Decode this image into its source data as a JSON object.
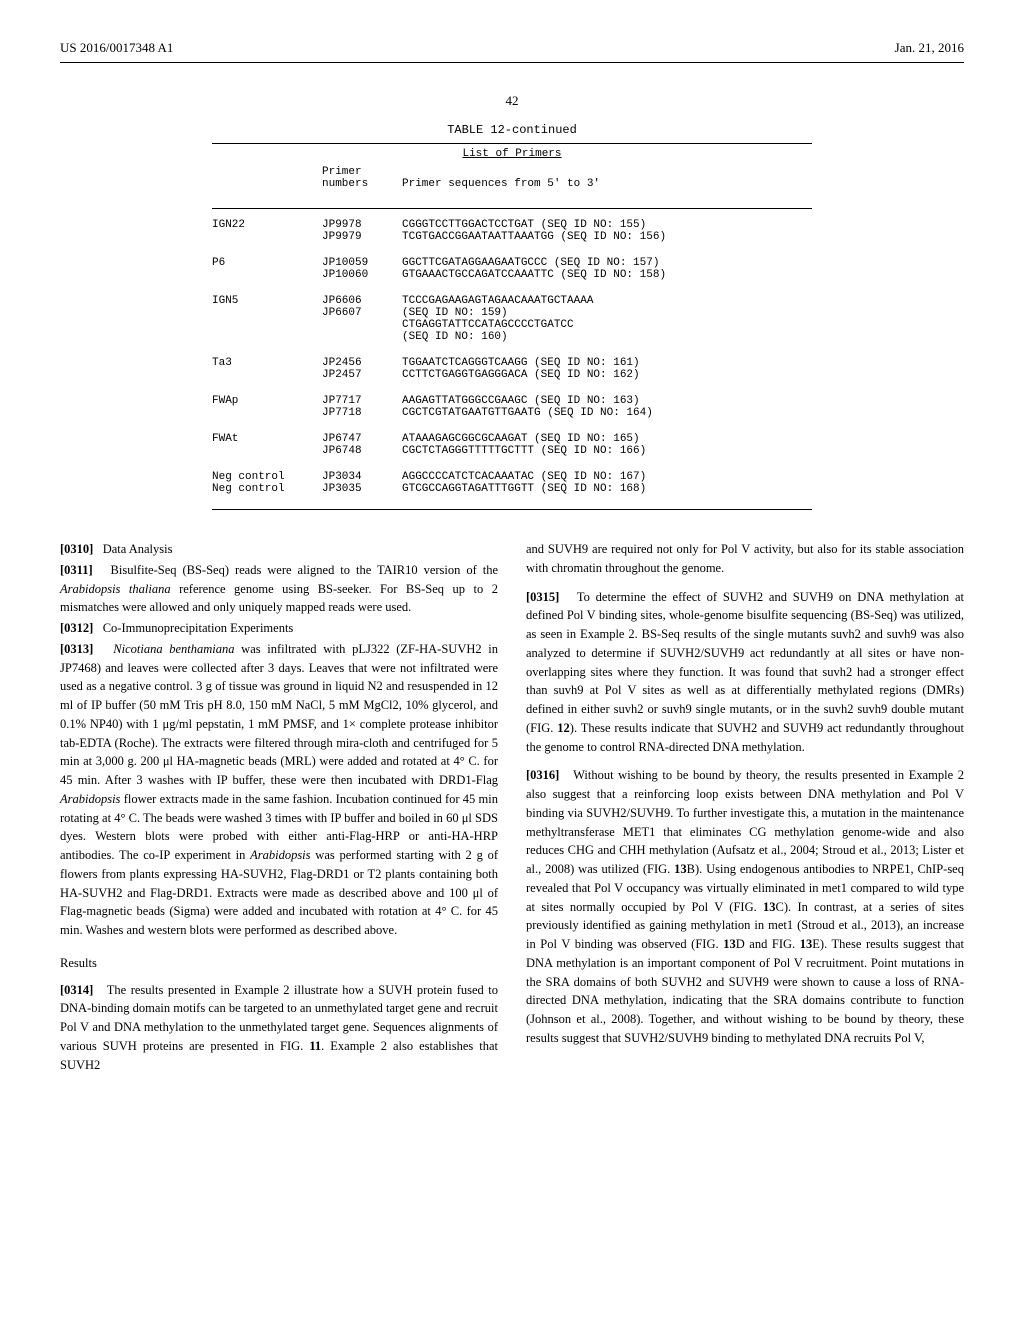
{
  "header": {
    "left": "US 2016/0017348 A1",
    "right": "Jan. 21, 2016"
  },
  "page_number": "42",
  "table": {
    "title": "TABLE 12-continued",
    "subtitle": "List of Primers",
    "header_col2_line1": "Primer",
    "header_col2_line2": "numbers",
    "header_col3": "Primer sequences from 5' to 3'",
    "rows": [
      {
        "name": "IGN22",
        "lines": [
          {
            "num": "JP9978",
            "seq": "CGGGTCCTTGGACTCCTGAT (SEQ ID NO: 155)"
          },
          {
            "num": "JP9979",
            "seq": "TCGTGACCGGAATAATTAAATGG (SEQ ID NO: 156)"
          }
        ]
      },
      {
        "name": "P6",
        "lines": [
          {
            "num": "JP10059",
            "seq": "GGCTTCGATAGGAAGAATGCCC (SEQ ID NO: 157)"
          },
          {
            "num": "JP10060",
            "seq": "GTGAAACTGCCAGATCCAAATTC (SEQ ID NO: 158)"
          }
        ]
      },
      {
        "name": "IGN5",
        "lines": [
          {
            "num": "JP6606",
            "seq": "TCCCGAGAAGAGTAGAACAAATGCTAAAA"
          },
          {
            "num": "",
            "seq": "(SEQ ID NO: 159)"
          },
          {
            "num": "JP6607",
            "seq": "CTGAGGTATTCCATAGCCCCTGATCC"
          },
          {
            "num": "",
            "seq": "(SEQ ID NO: 160)"
          }
        ]
      },
      {
        "name": "Ta3",
        "lines": [
          {
            "num": "JP2456",
            "seq": "TGGAATCTCAGGGTCAAGG (SEQ ID NO: 161)"
          },
          {
            "num": "JP2457",
            "seq": "CCTTCTGAGGTGAGGGACA (SEQ ID NO: 162)"
          }
        ]
      },
      {
        "name": "FWAp",
        "lines": [
          {
            "num": "JP7717",
            "seq": "AAGAGTTATGGGCCGAAGC (SEQ ID NO: 163)"
          },
          {
            "num": "JP7718",
            "seq": "CGCTCGTATGAATGTTGAATG (SEQ ID NO: 164)"
          }
        ]
      },
      {
        "name": "FWAt",
        "lines": [
          {
            "num": "JP6747",
            "seq": "ATAAAGAGCGGCGCAAGAT (SEQ ID NO: 165)"
          },
          {
            "num": "JP6748",
            "seq": "CGCTCTAGGGTTTTTGCTTT (SEQ ID NO: 166)"
          }
        ]
      },
      {
        "name": "Neg control\nNeg control",
        "lines": [
          {
            "num": "JP3034",
            "seq": "AGGCCCCATCTCACAAATAC (SEQ ID NO: 167)"
          },
          {
            "num": "JP3035",
            "seq": "GTCGCCAGGTAGATTTGGTT (SEQ ID NO: 168)"
          }
        ]
      }
    ]
  },
  "paragraphs": {
    "p0310": {
      "num": "[0310]",
      "text": "Data Analysis"
    },
    "p0311": {
      "num": "[0311]",
      "text_pre": "Bisulfite-Seq (BS-Seq) reads were aligned to the TAIR10 version of the ",
      "italic": "Arabidopsis thaliana",
      "text_post": " reference genome using BS-seeker. For BS-Seq up to 2 mismatches were allowed and only uniquely mapped reads were used."
    },
    "p0312": {
      "num": "[0312]",
      "text": "Co-Immunoprecipitation Experiments"
    },
    "p0313": {
      "num": "[0313]",
      "italic1": "Nicotiana benthamiana",
      "text1": " was infiltrated with pLJ322 (ZF-HA-SUVH2 in JP7468) and leaves were collected after 3 days. Leaves that were not infiltrated were used as a negative control. 3 g of tissue was ground in liquid N2 and resuspended in 12 ml of IP buffer (50 mM Tris pH 8.0, 150 mM NaCl, 5 mM MgCl2, 10% glycerol, and 0.1% NP40) with 1 μg/ml pepstatin, 1 mM PMSF, and 1× complete protease inhibitor tab-EDTA (Roche). The extracts were filtered through mira-cloth and centrifuged for 5 min at 3,000 g. 200 μl HA-magnetic beads (MRL) were added and rotated at 4° C. for 45 min. After 3 washes with IP buffer, these were then incubated with DRD1-Flag ",
      "italic2": "Arabidopsis",
      "text2": " flower extracts made in the same fashion. Incubation continued for 45 min rotating at 4° C. The beads were washed 3 times with IP buffer and boiled in 60 μl SDS dyes. Western blots were probed with either anti-Flag-HRP or anti-HA-HRP antibodies. The co-IP experiment in ",
      "italic3": "Arabidopsis",
      "text3": " was performed starting with 2 g of flowers from plants expressing HA-SUVH2, Flag-DRD1 or T2 plants containing both HA-SUVH2 and Flag-DRD1. Extracts were made as described above and 100 μl of Flag-magnetic beads (Sigma) were added and incubated with rotation at 4° C. for 45 min. Washes and western blots were performed as described above."
    },
    "results_header": "Results",
    "p0314": {
      "num": "[0314]",
      "text": "The results presented in Example 2 illustrate how a SUVH protein fused to DNA-binding domain motifs can be targeted to an unmethylated target gene and recruit Pol V and DNA methylation to the unmethylated target gene. Sequences alignments of various SUVH proteins are presented in FIG. ",
      "bold1": "11",
      "text2": ". Example 2 also establishes that SUVH2"
    },
    "p0314_cont": "and SUVH9 are required not only for Pol V activity, but also for its stable association with chromatin throughout the genome.",
    "p0315": {
      "num": "[0315]",
      "text": "To determine the effect of SUVH2 and SUVH9 on DNA methylation at defined Pol V binding sites, whole-genome bisulfite sequencing (BS-Seq) was utilized, as seen in Example 2. BS-Seq results of the single mutants suvh2 and suvh9 was also analyzed to determine if SUVH2/SUVH9 act redundantly at all sites or have non-overlapping sites where they function. It was found that suvh2 had a stronger effect than suvh9 at Pol V sites as well as at differentially methylated regions (DMRs) defined in either suvh2 or suvh9 single mutants, or in the suvh2 suvh9 double mutant (FIG. ",
      "bold1": "12",
      "text2": "). These results indicate that SUVH2 and SUVH9 act redundantly throughout the genome to control RNA-directed DNA methylation."
    },
    "p0316": {
      "num": "[0316]",
      "text": "Without wishing to be bound by theory, the results presented in Example 2 also suggest that a reinforcing loop exists between DNA methylation and Pol V binding via SUVH2/SUVH9. To further investigate this, a mutation in the maintenance methyltransferase MET1 that eliminates CG methylation genome-wide and also reduces CHG and CHH methylation (Aufsatz et al., 2004; Stroud et al., 2013; Lister et al., 2008) was utilized (FIG. ",
      "bold1": "13",
      "text2": "B). Using endogenous antibodies to NRPE1, ChIP-seq revealed that Pol V occupancy was virtually eliminated in met1 compared to wild type at sites normally occupied by Pol V (FIG. ",
      "bold2": "13",
      "text3": "C). In contrast, at a series of sites previously identified as gaining methylation in met1 (Stroud et al., 2013), an increase in Pol V binding was observed (FIG. ",
      "bold3": "13",
      "text4": "D and FIG. ",
      "bold4": "13",
      "text5": "E). These results suggest that DNA methylation is an important component of Pol V recruitment. Point mutations in the SRA domains of both SUVH2 and SUVH9 were shown to cause a loss of RNA-directed DNA methylation, indicating that the SRA domains contribute to function (Johnson et al., 2008). Together, and without wishing to be bound by theory, these results suggest that SUVH2/SUVH9 binding to methylated DNA recruits Pol V,"
    }
  }
}
